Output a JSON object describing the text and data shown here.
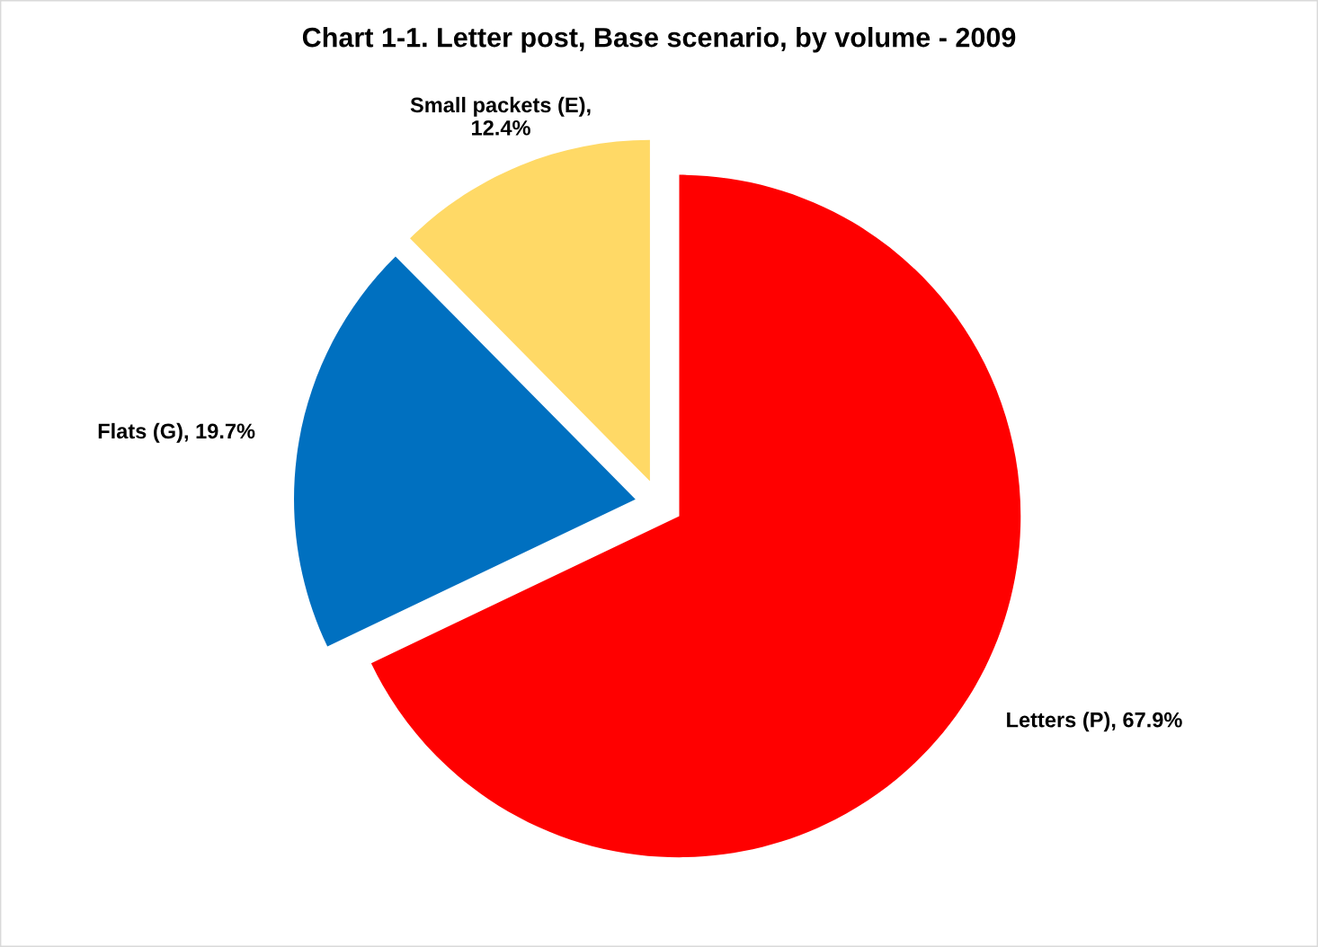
{
  "chart_data": {
    "type": "pie",
    "title": "Chart 1-1. Letter post, Base scenario, by volume - 2009",
    "categories": [
      "Letters (P), 67.9%",
      "Flats (G), 19.7%",
      "Small packets (E),\n12.4%"
    ],
    "values": [
      67.9,
      19.7,
      12.4
    ],
    "colors": [
      "#ff0000",
      "#0070c0",
      "#ffd966"
    ],
    "legend": false
  }
}
